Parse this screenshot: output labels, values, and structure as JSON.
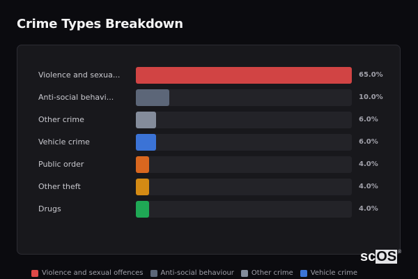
{
  "header": {
    "title": "Crime Types Breakdown"
  },
  "rows": [
    {
      "label": "Violence and sexua...",
      "pct_label": "65.0%",
      "value": 65.0,
      "color": "#d14444"
    },
    {
      "label": "Anti-social behavi...",
      "pct_label": "10.0%",
      "value": 10.0,
      "color": "#5c6678"
    },
    {
      "label": "Other crime",
      "pct_label": "6.0%",
      "value": 6.0,
      "color": "#848c9b"
    },
    {
      "label": "Vehicle crime",
      "pct_label": "6.0%",
      "value": 6.0,
      "color": "#3b73d6"
    },
    {
      "label": "Public order",
      "pct_label": "4.0%",
      "value": 4.0,
      "color": "#d9671f"
    },
    {
      "label": "Other theft",
      "pct_label": "4.0%",
      "value": 4.0,
      "color": "#d48a14"
    },
    {
      "label": "Drugs",
      "pct_label": "4.0%",
      "value": 4.0,
      "color": "#1fa855"
    }
  ],
  "legend": [
    {
      "label": "Violence and sexual offences",
      "color": "#e04848"
    },
    {
      "label": "Anti-social behaviour",
      "color": "#5c6678"
    },
    {
      "label": "Other crime",
      "color": "#848c9b"
    },
    {
      "label": "Vehicle crime",
      "color": "#3b73d6"
    }
  ],
  "logo": {
    "prefix": "sc",
    "boxed": "OS",
    "reg": "®"
  },
  "chart_data": {
    "type": "bar",
    "orientation": "horizontal",
    "title": "Crime Types Breakdown",
    "categories": [
      "Violence and sexual offences",
      "Anti-social behaviour",
      "Other crime",
      "Vehicle crime",
      "Public order",
      "Other theft",
      "Drugs"
    ],
    "values": [
      65.0,
      10.0,
      6.0,
      6.0,
      4.0,
      4.0,
      4.0
    ],
    "unit": "%",
    "xlabel": "",
    "ylabel": "",
    "xlim": [
      0,
      65
    ],
    "grid": false,
    "legend_position": "bottom",
    "legend_entries": [
      "Violence and sexual offences",
      "Anti-social behaviour",
      "Other crime",
      "Vehicle crime"
    ]
  }
}
